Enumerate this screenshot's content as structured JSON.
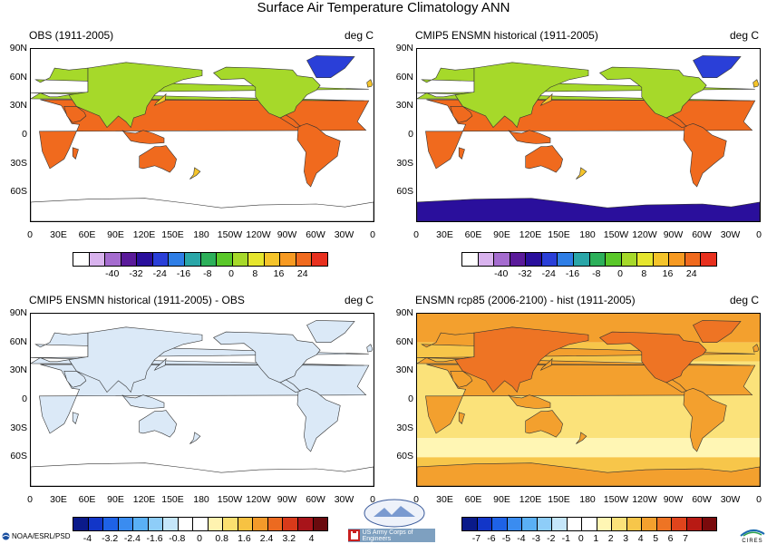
{
  "title": "Surface Air Temperature Climatology ANN",
  "lat_labels": [
    "90N",
    "60N",
    "30N",
    "0",
    "30S",
    "60S"
  ],
  "lon_labels": [
    "0",
    "30E",
    "60E",
    "90E",
    "120E",
    "150E",
    "180",
    "150W",
    "120W",
    "90W",
    "60W",
    "30W",
    "0"
  ],
  "panels": [
    {
      "title": "OBS (1911-2005)",
      "units": "deg C",
      "colorbar": {
        "labels": [
          "-40",
          "-32",
          "-24",
          "-16",
          "-8",
          "0",
          "8",
          "16",
          "24"
        ],
        "colors": [
          "#ffffff",
          "#d9b3ee",
          "#a56ccf",
          "#5a1a9a",
          "#2a0f9c",
          "#2a3fd8",
          "#2f7ee6",
          "#2aa6a8",
          "#2cb05a",
          "#5ac82a",
          "#a6d92a",
          "#e6e62e",
          "#f5c42a",
          "#f79a22",
          "#f06a1e",
          "#e8301e"
        ]
      }
    },
    {
      "title": "CMIP5 ENSMN historical (1911-2005)",
      "units": "deg C",
      "colorbar": {
        "labels": [
          "-40",
          "-32",
          "-24",
          "-16",
          "-8",
          "0",
          "8",
          "16",
          "24"
        ],
        "colors": [
          "#ffffff",
          "#d9b3ee",
          "#a56ccf",
          "#5a1a9a",
          "#2a0f9c",
          "#2a3fd8",
          "#2f7ee6",
          "#2aa6a8",
          "#2cb05a",
          "#5ac82a",
          "#a6d92a",
          "#e6e62e",
          "#f5c42a",
          "#f79a22",
          "#f06a1e",
          "#e8301e"
        ]
      }
    },
    {
      "title": "CMIP5 ENSMN historical (1911-2005) - OBS",
      "units": "deg C",
      "colorbar": {
        "labels": [
          "-4",
          "-3.2",
          "-2.4",
          "-1.6",
          "-0.8",
          "0",
          "0.8",
          "1.6",
          "2.4",
          "3.2",
          "4"
        ],
        "colors": [
          "#0a1a8a",
          "#1236c8",
          "#1e62e6",
          "#3a8cf0",
          "#5ab0f5",
          "#8ecdf8",
          "#c5e6fa",
          "#ffffff",
          "#ffffff",
          "#fff3b0",
          "#fbe070",
          "#f7c242",
          "#f39a2a",
          "#ec6a20",
          "#d83a1a",
          "#a8141a",
          "#6a0a0e"
        ]
      }
    },
    {
      "title": "ENSMN rcp85 (2006-2100) - hist (1911-2005)",
      "units": "deg C",
      "colorbar": {
        "labels": [
          "-7",
          "-6",
          "-5",
          "-4",
          "-3",
          "-2",
          "-1",
          "0",
          "1",
          "2",
          "3",
          "4",
          "5",
          "6",
          "7"
        ],
        "colors": [
          "#0a1a8a",
          "#1236c8",
          "#1e62e6",
          "#3a8cf0",
          "#5ab0f5",
          "#8ecdf8",
          "#c5e6fa",
          "#ffffff",
          "#ffffff",
          "#fff6b4",
          "#fbe27a",
          "#f7c64a",
          "#f3a02e",
          "#ee7424",
          "#e0441c",
          "#b81a14",
          "#7a0a0c"
        ]
      }
    }
  ],
  "logos": {
    "noaa": "NOAA/ESRL/PSD",
    "usace": "US Army Corps of Engineers",
    "cires": "CIRES"
  }
}
